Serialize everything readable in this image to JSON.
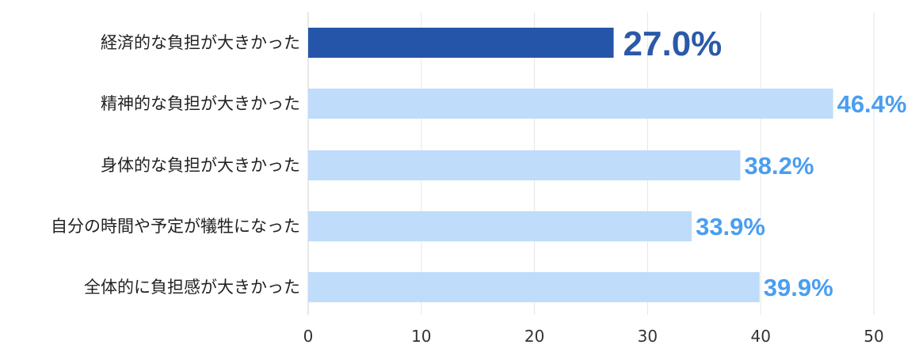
{
  "chart_data": {
    "type": "bar",
    "orientation": "horizontal",
    "categories": [
      "経済的な負担が大きかった",
      "精神的な負担が大きかった",
      "身体的な負担が大きかった",
      "自分の時間や予定が犠牲になった",
      "全体的に負担感が大きかった"
    ],
    "values": [
      27.0,
      46.4,
      38.2,
      33.9,
      39.9
    ],
    "value_labels": [
      "27.0%",
      "46.4%",
      "38.2%",
      "33.9%",
      "39.9%"
    ],
    "highlight_index": 0,
    "xlim": [
      0,
      50
    ],
    "xticks": [
      0,
      10,
      20,
      30,
      40,
      50
    ],
    "xtick_labels": [
      "0",
      "10",
      "20",
      "30",
      "40",
      "50"
    ],
    "grid": true,
    "title": "",
    "xlabel": "",
    "ylabel": "",
    "colors": {
      "highlight_bar": "#2555a8",
      "highlight_label": "#2a5aa8",
      "bar": "#bfdcfb",
      "label": "#4a9ef0"
    }
  }
}
